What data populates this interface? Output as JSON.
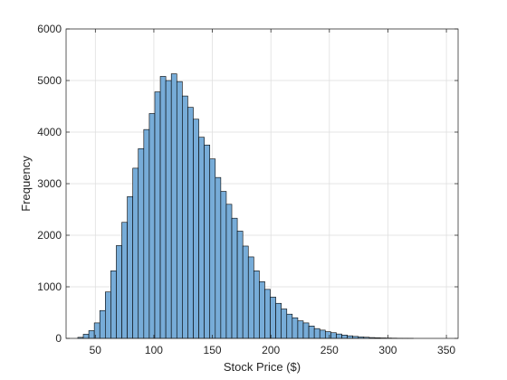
{
  "chart_data": {
    "type": "bar",
    "xlabel": "Stock Price ($)",
    "ylabel": "Frequency",
    "xlim": [
      25,
      360
    ],
    "ylim": [
      0,
      6000
    ],
    "xticks": [
      50,
      100,
      150,
      200,
      250,
      300,
      350
    ],
    "yticks": [
      0,
      1000,
      2000,
      3000,
      4000,
      5000,
      6000
    ],
    "grid": true,
    "bin_start": 35,
    "bin_width": 4.7,
    "values": [
      20,
      80,
      150,
      300,
      540,
      900,
      1310,
      1800,
      2250,
      2750,
      3300,
      3680,
      4050,
      4360,
      4780,
      5080,
      5000,
      5130,
      4980,
      4700,
      4480,
      4250,
      3900,
      3750,
      3480,
      3120,
      2850,
      2600,
      2330,
      2080,
      1790,
      1580,
      1310,
      1100,
      950,
      800,
      680,
      570,
      470,
      400,
      340,
      300,
      240,
      190,
      160,
      130,
      110,
      85,
      65,
      50,
      38,
      28,
      22,
      16,
      12,
      9,
      7,
      5,
      3,
      2,
      1
    ]
  },
  "colors": {
    "bar_fill": "#77ACD8",
    "bar_edge": "#000000",
    "grid": "#DEDEDE",
    "axis": "#262626"
  }
}
